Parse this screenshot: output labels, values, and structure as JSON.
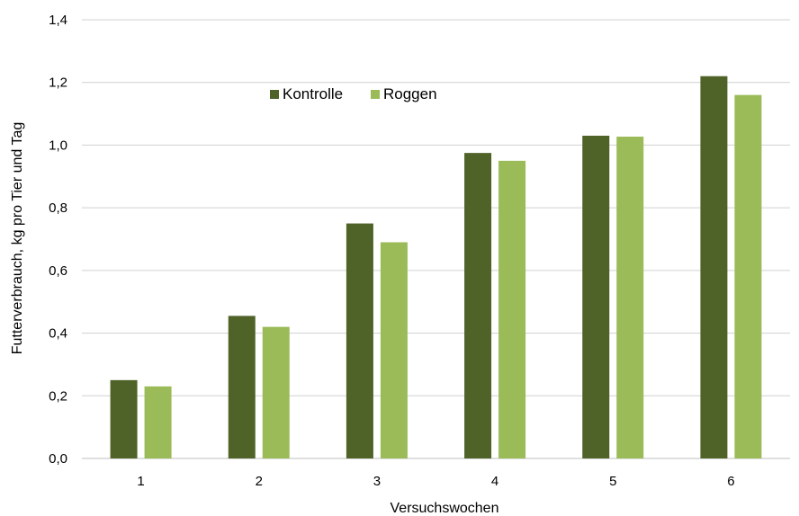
{
  "chart_data": {
    "type": "bar",
    "title": "",
    "xlabel": "Versuchswochen",
    "ylabel": "Futterverbrauch, kg pro Tier und Tag",
    "categories": [
      "1",
      "2",
      "3",
      "4",
      "5",
      "6"
    ],
    "series": [
      {
        "name": "Kontrolle",
        "color": "#4f6228",
        "values": [
          0.25,
          0.455,
          0.75,
          0.975,
          1.03,
          1.22
        ]
      },
      {
        "name": "Roggen",
        "color": "#9bbb59",
        "values": [
          0.23,
          0.42,
          0.69,
          0.95,
          1.027,
          1.16
        ]
      }
    ],
    "ylim": [
      0,
      1.4
    ],
    "yticks": [
      "0,0",
      "0,2",
      "0,4",
      "0,6",
      "0,8",
      "1,0",
      "1,2",
      "1,4"
    ],
    "grid": true,
    "legend_position": "top-center"
  }
}
